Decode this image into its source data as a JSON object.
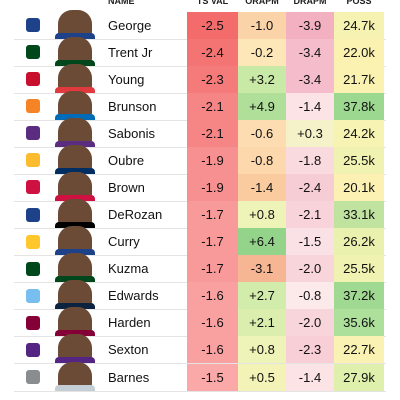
{
  "table": {
    "header": [
      "NAME",
      "TS VAL",
      "ORAPM",
      "DRAPM",
      "POSS"
    ],
    "rows": [
      [
        "George",
        "-2.5",
        "-1.0",
        "-3.9",
        "24.7k"
      ],
      [
        "Trent Jr",
        "-2.4",
        "-0.2",
        "-3.4",
        "22.0k"
      ],
      [
        "Young",
        "-2.3",
        "+3.2",
        "-3.4",
        "21.7k"
      ],
      [
        "Brunson",
        "-2.1",
        "+4.9",
        "-1.4",
        "37.8k"
      ],
      [
        "Sabonis",
        "-2.1",
        "-0.6",
        "+0.3",
        "24.2k"
      ],
      [
        "Oubre",
        "-1.9",
        "-0.8",
        "-1.8",
        "25.5k"
      ],
      [
        "Brown",
        "-1.9",
        "-1.4",
        "-2.4",
        "20.1k"
      ],
      [
        "DeRozan",
        "-1.7",
        "+0.8",
        "-2.1",
        "33.1k"
      ],
      [
        "Curry",
        "-1.7",
        "+6.4",
        "-1.5",
        "26.2k"
      ],
      [
        "Kuzma",
        "-1.7",
        "-3.1",
        "-2.0",
        "25.5k"
      ],
      [
        "Edwards",
        "-1.6",
        "+2.7",
        "-0.8",
        "37.2k"
      ],
      [
        "Harden",
        "-1.6",
        "+2.1",
        "-2.0",
        "35.6k"
      ],
      [
        "Sexton",
        "-1.6",
        "+0.8",
        "-2.3",
        "22.7k"
      ],
      [
        "Barnes",
        "-1.5",
        "+0.5",
        "-1.4",
        "27.9k"
      ]
    ],
    "colors": [
      [
        "#f36b6b",
        "#fbd3a8",
        "#f3b0c0",
        "#f6f3b2"
      ],
      [
        "#f47373",
        "#fde6b8",
        "#f5bccb",
        "#fbf2b2"
      ],
      [
        "#f57a7a",
        "#c9e9a6",
        "#f5bccb",
        "#fbf2b2"
      ],
      [
        "#f68585",
        "#b0df99",
        "#fbe3e6",
        "#9cd890"
      ],
      [
        "#f68585",
        "#fcdcb0",
        "#f5f1c8",
        "#f7f3b2"
      ],
      [
        "#f79090",
        "#fcd8ac",
        "#f9dade",
        "#eff2b0"
      ],
      [
        "#f79090",
        "#facb9f",
        "#f7cdd5",
        "#fcf1b3"
      ],
      [
        "#f89a9a",
        "#eef3b7",
        "#f8d3da",
        "#c0e39f"
      ],
      [
        "#f89a9a",
        "#93d48a",
        "#fae1e5",
        "#eaf1ae"
      ],
      [
        "#f89a9a",
        "#f7b693",
        "#f8d5db",
        "#eff2b0"
      ],
      [
        "#f9a1a1",
        "#d2ecab",
        "#fce9ea",
        "#a0d991"
      ],
      [
        "#f9a1a1",
        "#dbeeae",
        "#f8d5db",
        "#ade09a"
      ],
      [
        "#f9a1a1",
        "#eef3b7",
        "#f8cfd6",
        "#f9f2b2"
      ],
      [
        "#faa8a8",
        "#f3f3b8",
        "#fbe3e6",
        "#def0ab"
      ]
    ]
  }
}
